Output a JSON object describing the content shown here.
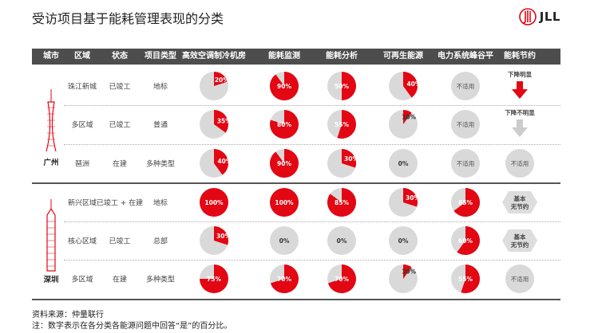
{
  "title": "受访项目基于能耗管理表现的分类",
  "logo": {
    "text": "JLL",
    "color": "#e30613"
  },
  "colors": {
    "red": "#e30613",
    "grey": "#d9d9d9",
    "header": "#4d4d4d",
    "label_dark": "#333333",
    "label_light": "#ffffff"
  },
  "headers": [
    "城市",
    "区域",
    "状态",
    "项目类型",
    "高效空调制冷机房",
    "能耗监测",
    "能耗分析",
    "可再生能源",
    "电力系统峰谷平",
    "能耗节约"
  ],
  "cities": [
    "广州",
    "深圳"
  ],
  "rows": [
    {
      "area": "珠江新城",
      "status": "已竣工",
      "type": "地标",
      "pies": [
        20,
        90,
        50,
        40
      ],
      "peak": "不适用",
      "saving": {
        "kind": "arrow-red",
        "label": "下降明显"
      }
    },
    {
      "area": "多区域",
      "status": "已竣工",
      "type": "普通",
      "pies": [
        35,
        80,
        55,
        10
      ],
      "peak": "不适用",
      "saving": {
        "kind": "arrow-grey",
        "label": "下降不明显"
      }
    },
    {
      "area": "琶洲",
      "status": "在建",
      "type": "多种类型",
      "pies": [
        40,
        90,
        30,
        0
      ],
      "peak": "不适用",
      "saving": {
        "kind": "na",
        "label": "不适用"
      }
    },
    {
      "area": "新兴区域",
      "status": "已竣工 + 在建",
      "type": "地标",
      "pies": [
        100,
        100,
        85,
        30
      ],
      "peak": 65,
      "saving": {
        "kind": "none",
        "label": "基本\n无节约"
      }
    },
    {
      "area": "核心区域",
      "status": "已竣工",
      "type": "总部",
      "pies": [
        30,
        0,
        0,
        0
      ],
      "peak": 60,
      "saving": {
        "kind": "none",
        "label": "基本\n无节约"
      }
    },
    {
      "area": "多区域",
      "status": "在建",
      "type": "多种类型",
      "pies": [
        75,
        70,
        70,
        10
      ],
      "peak": 55,
      "saving": {
        "kind": "na",
        "label": "不适用"
      }
    }
  ],
  "footer": {
    "source": "资料来源：仲量联行",
    "note": "注：数字表示在各分类各能源问题中回答“是”的百分比。"
  }
}
